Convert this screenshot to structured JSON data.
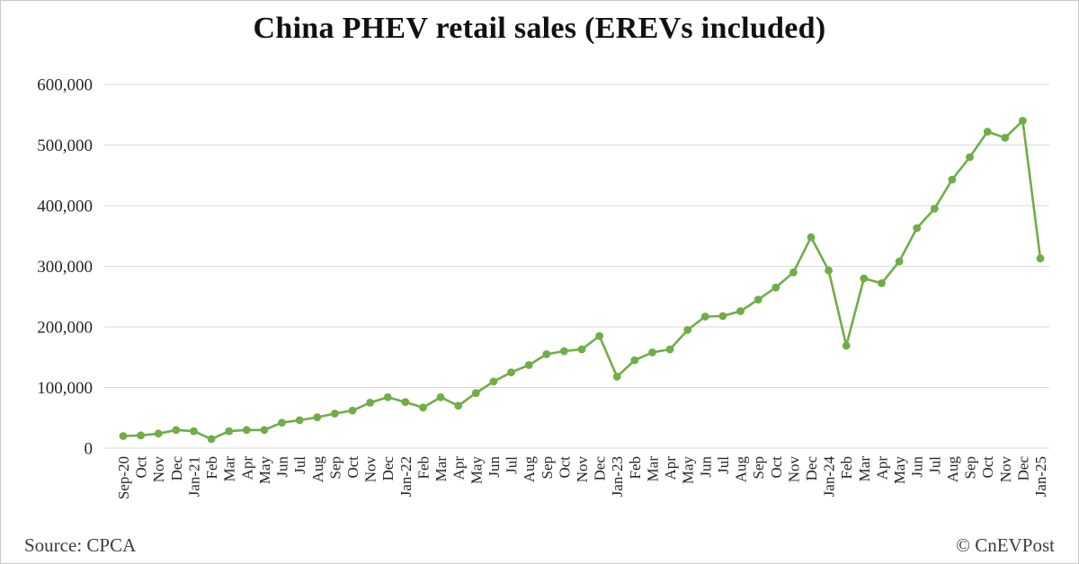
{
  "chart_data": {
    "type": "line",
    "title": "China PHEV retail sales (EREVs included)",
    "xlabel": "",
    "ylabel": "",
    "ylim": [
      0,
      600000
    ],
    "grid": "horizontal",
    "legend": "none",
    "grid_color": "#d9d9d9",
    "series_color": "#70ad47",
    "y_ticks": [
      {
        "value": 0,
        "label": "0"
      },
      {
        "value": 100000,
        "label": "100,000"
      },
      {
        "value": 200000,
        "label": "200,000"
      },
      {
        "value": 300000,
        "label": "300,000"
      },
      {
        "value": 400000,
        "label": "400,000"
      },
      {
        "value": 500000,
        "label": "500,000"
      },
      {
        "value": 600000,
        "label": "600,000"
      }
    ],
    "categories": [
      "Sep-20",
      "Oct",
      "Nov",
      "Dec",
      "Jan-21",
      "Feb",
      "Mar",
      "Apr",
      "May",
      "Jun",
      "Jul",
      "Aug",
      "Sep",
      "Oct",
      "Nov",
      "Dec",
      "Jan-22",
      "Feb",
      "Mar",
      "Apr",
      "May",
      "Jun",
      "Jul",
      "Aug",
      "Sep",
      "Oct",
      "Nov",
      "Dec",
      "Jan-23",
      "Feb",
      "Mar",
      "Apr",
      "May",
      "Jun",
      "Jul",
      "Aug",
      "Sep",
      "Oct",
      "Nov",
      "Dec",
      "Jan-24",
      "Feb",
      "Mar",
      "Apr",
      "May",
      "Jun",
      "Jul",
      "Aug",
      "Sep",
      "Oct",
      "Nov",
      "Dec",
      "Jan-25"
    ],
    "values": [
      20000,
      21000,
      24000,
      30000,
      28000,
      15000,
      28000,
      30000,
      30000,
      42000,
      46000,
      51000,
      57000,
      62000,
      75000,
      84000,
      76000,
      67000,
      84000,
      70000,
      91000,
      110000,
      125000,
      137000,
      155000,
      160000,
      163000,
      185000,
      118000,
      145000,
      158000,
      163000,
      195000,
      217000,
      218000,
      226000,
      245000,
      265000,
      290000,
      348000,
      293000,
      169000,
      280000,
      272000,
      308000,
      363000,
      395000,
      443000,
      480000,
      522000,
      512000,
      540000,
      313000
    ]
  },
  "footer": {
    "source": "Source: CPCA",
    "copyright": "© CnEVPost"
  }
}
